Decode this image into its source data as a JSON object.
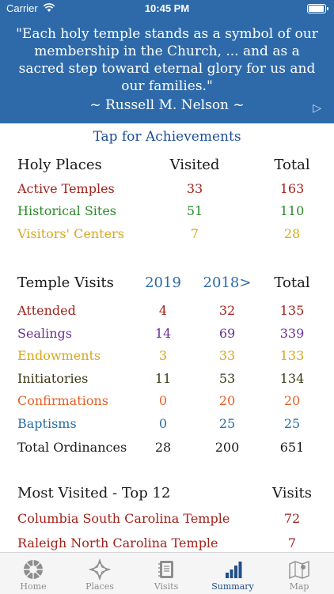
{
  "status": {
    "carrier": "Carrier",
    "time": "10:45 PM"
  },
  "quote": {
    "lines": [
      "\"Each holy temple stands as a symbol of our",
      "membership in the Church, ... and as a",
      "sacred step toward eternal glory for us and",
      "our families.\""
    ],
    "author": "~ Russell M. Nelson ~",
    "next_icon": "play-triangle-icon"
  },
  "achievements_link": "Tap for Achievements",
  "holy_places": {
    "headers": [
      "Holy Places",
      "Visited",
      "Total"
    ],
    "rows": [
      {
        "label": "Active Temples",
        "visited": "33",
        "total": "163",
        "color": "#a1221b"
      },
      {
        "label": "Historical Sites",
        "visited": "51",
        "total": "110",
        "color": "#2c8a2a"
      },
      {
        "label": "Visitors' Centers",
        "visited": "7",
        "total": "28",
        "color": "#d7a81c"
      }
    ]
  },
  "temple_visits": {
    "headers": [
      "Temple Visits",
      "2019",
      "2018>",
      "Total"
    ],
    "rows": [
      {
        "label": "Attended",
        "y2019": "4",
        "y2018": "32",
        "total": "135",
        "color": "#a1221b"
      },
      {
        "label": "Sealings",
        "y2019": "14",
        "y2018": "69",
        "total": "339",
        "color": "#6b2f94"
      },
      {
        "label": "Endowments",
        "y2019": "3",
        "y2018": "33",
        "total": "133",
        "color": "#d7a81c"
      },
      {
        "label": "Initiatories",
        "y2019": "11",
        "y2018": "53",
        "total": "134",
        "color": "#3a3a17"
      },
      {
        "label": "Confirmations",
        "y2019": "0",
        "y2018": "20",
        "total": "20",
        "color": "#e55f26"
      },
      {
        "label": "Baptisms",
        "y2019": "0",
        "y2018": "25",
        "total": "25",
        "color": "#2a6da0"
      },
      {
        "label": "Total Ordinances",
        "y2019": "28",
        "y2018": "200",
        "total": "651",
        "color": "#1a1a1a"
      }
    ]
  },
  "most_visited": {
    "headers": [
      "Most Visited - Top 12",
      "Visits"
    ],
    "rows": [
      {
        "label": "Columbia South Carolina Temple",
        "visits": "72"
      },
      {
        "label": "Raleigh North Carolina Temple",
        "visits": "7"
      }
    ]
  },
  "tabs": [
    {
      "label": "Home",
      "icon": "temple-home-icon",
      "active": false
    },
    {
      "label": "Places",
      "icon": "compass-star-icon",
      "active": false
    },
    {
      "label": "Visits",
      "icon": "journal-icon",
      "active": false
    },
    {
      "label": "Summary",
      "icon": "bar-chart-icon",
      "active": true
    },
    {
      "label": "Map",
      "icon": "map-icon",
      "active": false
    }
  ]
}
